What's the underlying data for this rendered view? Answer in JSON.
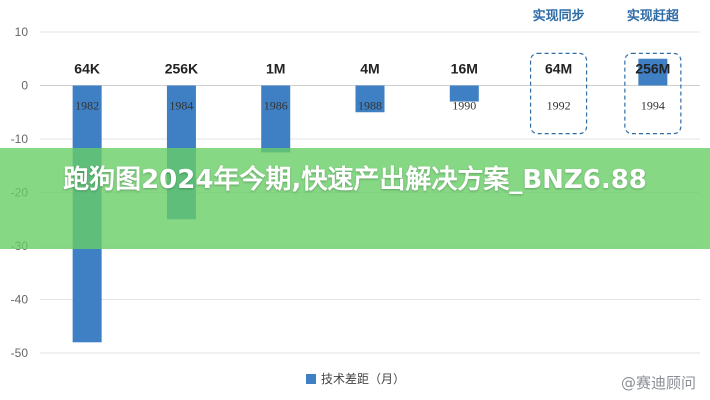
{
  "chart_data": {
    "type": "bar",
    "categories": [
      "1982",
      "1984",
      "1986",
      "1988",
      "1990",
      "1992",
      "1994"
    ],
    "bar_top_labels": [
      "64K",
      "256K",
      "1M",
      "4M",
      "16M",
      "64M",
      "256M"
    ],
    "series": [
      {
        "name": "技术差距（月）",
        "values": [
          -48,
          -25,
          -12.5,
          -5,
          -3,
          0,
          5
        ]
      }
    ],
    "ylim": [
      -50,
      10
    ],
    "yticks": [
      10,
      0,
      -10,
      -20,
      -30,
      -40,
      -50
    ],
    "annotations": [
      {
        "text": "实现同步",
        "category": "1992"
      },
      {
        "text": "实现赶超",
        "category": "1994"
      }
    ],
    "grid": true,
    "legend_position": "bottom",
    "colors": {
      "bar": "#3f7fc4",
      "grid": "#e3e3e3",
      "annotation": "#2f6da6",
      "axis_text": "#666666"
    }
  },
  "banner": {
    "text": "跑狗图2024年今期,快速产出解决方案_BNZ6.88"
  },
  "watermark": {
    "text": "@赛迪顾问"
  }
}
